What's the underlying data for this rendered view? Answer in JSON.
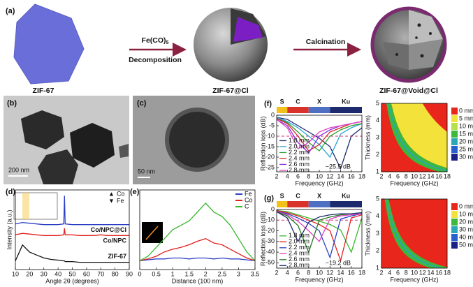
{
  "panels": {
    "a": {
      "label": "(a)",
      "names": [
        "ZIF-67",
        "ZIF-67@Cl",
        "ZIF-67@Void@Cl"
      ],
      "step1_top": "Fe(CO)",
      "step1_sub": "5",
      "step1_bottom": "Decomposition",
      "step2": "Calcination"
    },
    "b": {
      "label": "(b)",
      "scale": "200 nm"
    },
    "c": {
      "label": "(c)",
      "scale": "50 nm"
    }
  },
  "chart_data": [
    {
      "type": "line",
      "label": "(d)",
      "xlabel": "Angle 2θ (degrees)",
      "ylabel": "Intensity (a.u.)",
      "xlim": [
        10,
        90
      ],
      "xticks": [
        10,
        20,
        30,
        40,
        50,
        60,
        70,
        80,
        90
      ],
      "ylim": [
        0,
        11
      ],
      "x": [
        10,
        15,
        20,
        25,
        30,
        35,
        40,
        44,
        44.5,
        45,
        50,
        55,
        60,
        65,
        70,
        75,
        80,
        85,
        90
      ],
      "markers": [
        {
          "symbol": "▲",
          "name": "Co"
        },
        {
          "symbol": "▼",
          "name": "Fe"
        }
      ],
      "series": [
        {
          "name": "Co/NPC@Cl",
          "color": "#2b3fc4",
          "values": [
            6.3,
            6.5,
            6.4,
            6.3,
            6.2,
            6.2,
            6.2,
            6.3,
            10.2,
            6.3,
            6.2,
            6.2,
            6.2,
            6.2,
            6.2,
            6.2,
            6.2,
            6.2,
            6.2
          ]
        },
        {
          "name": "Co/NPC",
          "color": "#e0201c",
          "values": [
            4.8,
            5.0,
            4.9,
            4.8,
            4.7,
            4.7,
            4.7,
            4.8,
            5.7,
            4.8,
            4.8,
            4.7,
            4.7,
            4.7,
            4.8,
            4.7,
            4.7,
            4.7,
            4.7
          ]
        },
        {
          "name": "ZIF-67",
          "color": "#111111",
          "values": [
            1.2,
            3.4,
            2.4,
            2.0,
            1.6,
            1.4,
            1.3,
            1.2,
            1.2,
            1.1,
            1.1,
            1.0,
            1.0,
            1.0,
            1.0,
            1.0,
            1.0,
            1.0,
            1.0
          ]
        }
      ]
    },
    {
      "type": "line",
      "label": "(e)",
      "xlabel": "Distance (100 nm)",
      "xlim": [
        0,
        3.5
      ],
      "xticks": [
        0,
        0.5,
        1,
        1.5,
        2,
        2.5,
        3,
        3.5
      ],
      "ylim": [
        0,
        9
      ],
      "x": [
        0,
        0.25,
        0.5,
        0.75,
        1,
        1.25,
        1.5,
        1.75,
        2,
        2.25,
        2.5,
        2.75,
        3,
        3.25,
        3.5
      ],
      "series": [
        {
          "name": "Fe",
          "color": "#2b3fc4",
          "values": [
            1.0,
            1.1,
            1.2,
            1.2,
            1.3,
            1.3,
            1.2,
            1.3,
            1.3,
            1.2,
            1.3,
            1.2,
            1.2,
            1.1,
            1.0
          ]
        },
        {
          "name": "Co",
          "color": "#e0201c",
          "values": [
            1.0,
            1.2,
            1.5,
            2.0,
            2.3,
            2.5,
            2.8,
            3.2,
            3.5,
            3.0,
            2.8,
            2.3,
            1.8,
            1.3,
            1.0
          ]
        },
        {
          "name": "C",
          "color": "#38b82c",
          "values": [
            1.0,
            1.5,
            2.5,
            3.5,
            4.5,
            5.0,
            5.5,
            6.5,
            7.5,
            6.5,
            6.0,
            5.0,
            3.5,
            2.0,
            1.0
          ]
        }
      ]
    },
    {
      "type": "line",
      "label": "(f)",
      "xlabel": "Frequency (GHz)",
      "ylabel": "Reflection loss (dB)",
      "xlim": [
        2,
        18
      ],
      "xticks": [
        2,
        4,
        6,
        8,
        10,
        12,
        14,
        16,
        18
      ],
      "ylim": [
        -27,
        0
      ],
      "yticks": [
        0,
        -5,
        -10,
        -15,
        -20,
        -25
      ],
      "reference_line": -10,
      "annotation": "−25.5 dB",
      "bands": [
        {
          "name": "S",
          "from": 2,
          "to": 4,
          "color": "#f2c21b"
        },
        {
          "name": "C",
          "from": 4,
          "to": 8,
          "color": "#d8322a"
        },
        {
          "name": "X",
          "from": 8,
          "to": 12,
          "color": "#4f6fc2"
        },
        {
          "name": "Ku",
          "from": 12,
          "to": 18,
          "color": "#1d2a6e"
        }
      ],
      "x": [
        2,
        4,
        6,
        8,
        10,
        12,
        14,
        16,
        18
      ],
      "series": [
        {
          "name": "1.8 mm",
          "color": "#1d2a6e",
          "values": [
            -1,
            -2,
            -5,
            -8,
            -11,
            -15,
            -25.5,
            -10,
            -6
          ]
        },
        {
          "name": "2.0 mm",
          "color": "#2aa3d8",
          "values": [
            -1,
            -3,
            -6,
            -10,
            -14,
            -20,
            -9,
            -6,
            -4
          ]
        },
        {
          "name": "2.2 mm",
          "color": "#2ca02c",
          "values": [
            -1.5,
            -3.5,
            -8,
            -13,
            -17,
            -10,
            -7,
            -5,
            -4
          ]
        },
        {
          "name": "2.4 mm",
          "color": "#d62728",
          "values": [
            -1.5,
            -4,
            -10,
            -17,
            -14,
            -8,
            -6,
            -4,
            -3
          ]
        },
        {
          "name": "2.6 mm",
          "color": "#8a2be2",
          "values": [
            -2,
            -5,
            -13,
            -18,
            -10,
            -7,
            -5,
            -4,
            -3
          ]
        },
        {
          "name": "2.8 mm",
          "color": "#e040c0",
          "values": [
            -2,
            -6,
            -16,
            -13,
            -8,
            -6,
            -5,
            -4,
            -3
          ]
        }
      ]
    },
    {
      "type": "contour",
      "xlabel": "Frequency (GHz)",
      "ylabel": "Thickness (mm)",
      "xlim": [
        2,
        18
      ],
      "xticks": [
        2,
        4,
        6,
        8,
        10,
        12,
        14,
        16,
        18
      ],
      "ylim": [
        1,
        5
      ],
      "yticks": [
        1,
        2,
        3,
        4,
        5
      ],
      "colorbar": [
        {
          "label": "0 mm",
          "color": "#e8261c"
        },
        {
          "label": "5 mm",
          "color": "#f2e23a"
        },
        {
          "label": "10 mm",
          "color": "#b8e04a"
        },
        {
          "label": "15 mm",
          "color": "#3cb83c"
        },
        {
          "label": "20 mm",
          "color": "#2aa8b8"
        },
        {
          "label": "25 mm",
          "color": "#2a5fd0"
        },
        {
          "label": "30 mm",
          "color": "#1a1f8a"
        }
      ]
    },
    {
      "type": "line",
      "label": "(g)",
      "xlabel": "Frequency (GHz)",
      "ylabel": "Reflection loss (dB)",
      "xlim": [
        2,
        18
      ],
      "xticks": [
        2,
        4,
        6,
        8,
        10,
        12,
        14,
        16,
        18
      ],
      "ylim": [
        -55,
        0
      ],
      "yticks": [
        0,
        -10,
        -20,
        -30,
        -40,
        -50
      ],
      "reference_line": -10,
      "annotation": "−19.2 dB",
      "bands": [
        {
          "name": "S",
          "from": 2,
          "to": 4,
          "color": "#f2c21b"
        },
        {
          "name": "C",
          "from": 4,
          "to": 8,
          "color": "#d8322a"
        },
        {
          "name": "X",
          "from": 8,
          "to": 12,
          "color": "#4f6fc2"
        },
        {
          "name": "Ku",
          "from": 12,
          "to": 18,
          "color": "#1d2a6e"
        }
      ],
      "x": [
        2,
        4,
        6,
        8,
        10,
        12,
        14,
        16,
        18
      ],
      "series": [
        {
          "name": "1.8 mm",
          "color": "#38b82c",
          "values": [
            -1,
            -2,
            -5,
            -8,
            -11,
            -14,
            -19.2,
            -40,
            -8
          ]
        },
        {
          "name": "2.0 mm",
          "color": "#e0201c",
          "values": [
            -1,
            -3,
            -6,
            -10,
            -14,
            -20,
            -48,
            -8,
            -5
          ]
        },
        {
          "name": "2.2 mm",
          "color": "#2b3fc4",
          "values": [
            -1.5,
            -4,
            -8,
            -13,
            -20,
            -45,
            -9,
            -6,
            -4
          ]
        },
        {
          "name": "2.4 mm",
          "color": "#e040c0",
          "values": [
            -1.5,
            -5,
            -11,
            -20,
            -30,
            -9,
            -6,
            -5,
            -4
          ]
        },
        {
          "name": "2.6 mm",
          "color": "#1f7a1f",
          "values": [
            -2,
            -6,
            -15,
            -40,
            -10,
            -7,
            -5,
            -4,
            -3
          ]
        },
        {
          "name": "2.8 mm",
          "color": "#1d2a6e",
          "values": [
            -2,
            -8,
            -30,
            -12,
            -7,
            -5,
            -4,
            -4,
            -3
          ]
        }
      ]
    },
    {
      "type": "contour",
      "xlabel": "Frequency (GHz)",
      "ylabel": "Thickness (mm)",
      "xlim": [
        2,
        18
      ],
      "xticks": [
        2,
        4,
        6,
        8,
        10,
        12,
        14,
        16,
        18
      ],
      "ylim": [
        1,
        5
      ],
      "yticks": [
        1,
        2,
        3,
        4,
        5
      ],
      "colorbar": [
        {
          "label": "0 mm",
          "color": "#e8261c"
        },
        {
          "label": "10 mm",
          "color": "#f2e23a"
        },
        {
          "label": "20 mm",
          "color": "#3cb83c"
        },
        {
          "label": "30 mm",
          "color": "#2aa8b8"
        },
        {
          "label": "40 mm",
          "color": "#2a5fd0"
        },
        {
          "label": "50 mm",
          "color": "#1a1f8a"
        }
      ]
    }
  ]
}
